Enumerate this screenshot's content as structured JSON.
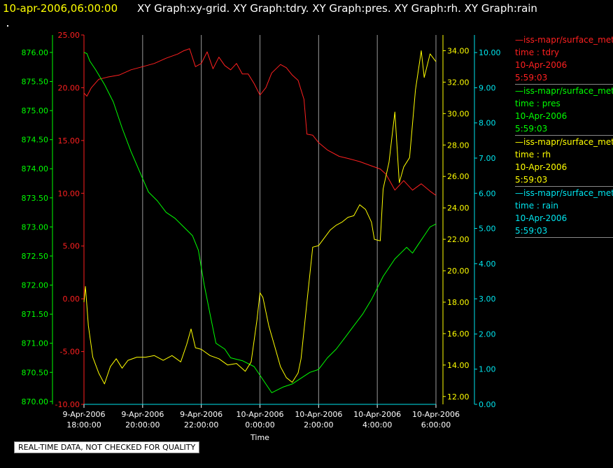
{
  "header": {
    "timestamp": "10-apr-2006,06:00:00",
    "titles": "XY Graph:xy-grid.  XY Graph:tdry.  XY Graph:pres.  XY Graph:rh.  XY Graph:rain"
  },
  "legend": [
    {
      "source": "iss-mapr/surface_met",
      "label": "time : tdry",
      "date": "10-Apr-2006",
      "time": "5:59:03",
      "color": "#ff2020"
    },
    {
      "source": "iss-mapr/surface_met",
      "label": "time : pres",
      "date": "10-Apr-2006",
      "time": "5:59:03",
      "color": "#00ff00"
    },
    {
      "source": "iss-mapr/surface_met",
      "label": "time : rh",
      "date": "10-Apr-2006",
      "time": "5:59:03",
      "color": "#ffff00"
    },
    {
      "source": "iss-mapr/surface_met",
      "label": "time : rain",
      "date": "10-Apr-2006",
      "time": "5:59:03",
      "color": "#00e5ee"
    }
  ],
  "quality_note": "REAL-TIME DATA, NOT CHECKED FOR QUALITY",
  "chart_data": {
    "type": "line",
    "xlabel": "Time",
    "x_ticks": [
      {
        "date": "9-Apr-2006",
        "time": "18:00:00",
        "hours": 18
      },
      {
        "date": "9-Apr-2006",
        "time": "20:00:00",
        "hours": 20
      },
      {
        "date": "9-Apr-2006",
        "time": "22:00:00",
        "hours": 22
      },
      {
        "date": "10-Apr-2006",
        "time": "0:00:00",
        "hours": 24
      },
      {
        "date": "10-Apr-2006",
        "time": "2:00:00",
        "hours": 26
      },
      {
        "date": "10-Apr-2006",
        "time": "4:00:00",
        "hours": 28
      },
      {
        "date": "10-Apr-2006",
        "time": "6:00:00",
        "hours": 30
      }
    ],
    "xlim_hours": [
      18,
      30
    ],
    "grid": "vertical",
    "axes": {
      "pres": {
        "color": "#00ff00",
        "ylim": [
          869.95,
          876.3
        ],
        "ticks": [
          "870.00",
          "870.50",
          "871.00",
          "871.50",
          "872.00",
          "872.50",
          "873.00",
          "873.50",
          "874.00",
          "874.50",
          "875.00",
          "875.50",
          "876.00"
        ]
      },
      "tdry": {
        "color": "#ff2020",
        "ylim": [
          -10,
          25
        ],
        "ticks": [
          "-10.00",
          "-5.00",
          "0.00",
          "5.00",
          "10.00",
          "15.00",
          "20.00",
          "25.00"
        ]
      },
      "rh": {
        "color": "#ffff00",
        "ylim": [
          11.5,
          35.0
        ],
        "ticks": [
          "12.00",
          "14.00",
          "16.00",
          "18.00",
          "20.00",
          "22.00",
          "24.00",
          "26.00",
          "28.00",
          "30.00",
          "32.00",
          "34.00"
        ]
      },
      "rain": {
        "color": "#00e5ee",
        "ylim": [
          0,
          10.5
        ],
        "ticks": [
          "0.00",
          "1.00",
          "2.00",
          "3.00",
          "4.00",
          "5.00",
          "6.00",
          "7.00",
          "8.00",
          "9.00",
          "10.00"
        ]
      }
    },
    "series": [
      {
        "name": "tdry",
        "axis": "tdry",
        "color": "#ff2020",
        "points": [
          [
            18,
            19.5
          ],
          [
            18.1,
            19.2
          ],
          [
            18.25,
            20.0
          ],
          [
            18.5,
            20.8
          ],
          [
            18.8,
            21.0
          ],
          [
            19.2,
            21.2
          ],
          [
            19.6,
            21.7
          ],
          [
            20.0,
            22.0
          ],
          [
            20.4,
            22.3
          ],
          [
            20.8,
            22.8
          ],
          [
            21.2,
            23.2
          ],
          [
            21.4,
            23.5
          ],
          [
            21.6,
            23.7
          ],
          [
            21.8,
            22.0
          ],
          [
            22.0,
            22.3
          ],
          [
            22.2,
            23.4
          ],
          [
            22.4,
            21.8
          ],
          [
            22.6,
            22.9
          ],
          [
            22.8,
            22.1
          ],
          [
            23.0,
            21.7
          ],
          [
            23.2,
            22.3
          ],
          [
            23.4,
            21.3
          ],
          [
            23.6,
            21.3
          ],
          [
            23.8,
            20.4
          ],
          [
            24.0,
            19.3
          ],
          [
            24.2,
            20.0
          ],
          [
            24.4,
            21.4
          ],
          [
            24.7,
            22.2
          ],
          [
            24.9,
            21.9
          ],
          [
            25.1,
            21.2
          ],
          [
            25.3,
            20.7
          ],
          [
            25.5,
            18.9
          ],
          [
            25.6,
            15.6
          ],
          [
            25.8,
            15.5
          ],
          [
            26.0,
            14.8
          ],
          [
            26.3,
            14.1
          ],
          [
            26.7,
            13.5
          ],
          [
            27.0,
            13.3
          ],
          [
            27.4,
            13.0
          ],
          [
            27.8,
            12.6
          ],
          [
            28.1,
            12.3
          ],
          [
            28.3,
            11.8
          ],
          [
            28.6,
            10.3
          ],
          [
            28.9,
            11.2
          ],
          [
            29.2,
            10.3
          ],
          [
            29.5,
            10.9
          ],
          [
            29.8,
            10.2
          ],
          [
            30.0,
            9.8
          ]
        ]
      },
      {
        "name": "pres",
        "axis": "pres",
        "color": "#00ff00",
        "points": [
          [
            18,
            876.0
          ],
          [
            18.1,
            875.98
          ],
          [
            18.2,
            875.85
          ],
          [
            18.4,
            875.7
          ],
          [
            18.7,
            875.45
          ],
          [
            19.0,
            875.15
          ],
          [
            19.3,
            874.7
          ],
          [
            19.6,
            874.3
          ],
          [
            19.9,
            873.95
          ],
          [
            20.2,
            873.6
          ],
          [
            20.5,
            873.45
          ],
          [
            20.8,
            873.25
          ],
          [
            21.1,
            873.15
          ],
          [
            21.4,
            873.0
          ],
          [
            21.7,
            872.85
          ],
          [
            21.9,
            872.6
          ],
          [
            22.1,
            872.0
          ],
          [
            22.3,
            871.5
          ],
          [
            22.5,
            871.0
          ],
          [
            22.8,
            870.9
          ],
          [
            23.0,
            870.75
          ],
          [
            23.4,
            870.7
          ],
          [
            23.8,
            870.6
          ],
          [
            24.0,
            870.45
          ],
          [
            24.2,
            870.3
          ],
          [
            24.4,
            870.15
          ],
          [
            24.6,
            870.2
          ],
          [
            24.8,
            870.25
          ],
          [
            25.1,
            870.3
          ],
          [
            25.4,
            870.4
          ],
          [
            25.7,
            870.5
          ],
          [
            26.0,
            870.55
          ],
          [
            26.3,
            870.75
          ],
          [
            26.6,
            870.9
          ],
          [
            26.9,
            871.1
          ],
          [
            27.2,
            871.3
          ],
          [
            27.5,
            871.5
          ],
          [
            27.8,
            871.75
          ],
          [
            28.0,
            871.95
          ],
          [
            28.2,
            872.15
          ],
          [
            28.4,
            872.3
          ],
          [
            28.6,
            872.45
          ],
          [
            28.8,
            872.55
          ],
          [
            29.0,
            872.65
          ],
          [
            29.2,
            872.55
          ],
          [
            29.4,
            872.7
          ],
          [
            29.6,
            872.85
          ],
          [
            29.8,
            873.0
          ],
          [
            30.0,
            873.05
          ]
        ]
      },
      {
        "name": "rh",
        "axis": "rh",
        "color": "#ffff00",
        "points": [
          [
            18,
            18.0
          ],
          [
            18.05,
            19.0
          ],
          [
            18.15,
            16.5
          ],
          [
            18.3,
            14.5
          ],
          [
            18.5,
            13.5
          ],
          [
            18.7,
            12.8
          ],
          [
            18.9,
            13.9
          ],
          [
            19.1,
            14.4
          ],
          [
            19.3,
            13.8
          ],
          [
            19.5,
            14.3
          ],
          [
            19.8,
            14.5
          ],
          [
            20.1,
            14.5
          ],
          [
            20.4,
            14.6
          ],
          [
            20.7,
            14.3
          ],
          [
            21.0,
            14.6
          ],
          [
            21.3,
            14.2
          ],
          [
            21.5,
            15.3
          ],
          [
            21.65,
            16.3
          ],
          [
            21.8,
            15.1
          ],
          [
            22.0,
            15.0
          ],
          [
            22.3,
            14.6
          ],
          [
            22.6,
            14.4
          ],
          [
            22.9,
            14.0
          ],
          [
            23.2,
            14.1
          ],
          [
            23.5,
            13.6
          ],
          [
            23.7,
            14.2
          ],
          [
            23.9,
            16.9
          ],
          [
            24.0,
            18.6
          ],
          [
            24.1,
            18.3
          ],
          [
            24.3,
            16.5
          ],
          [
            24.5,
            15.2
          ],
          [
            24.7,
            13.9
          ],
          [
            24.9,
            13.2
          ],
          [
            25.1,
            12.9
          ],
          [
            25.3,
            13.5
          ],
          [
            25.4,
            14.4
          ],
          [
            25.6,
            18.0
          ],
          [
            25.8,
            21.5
          ],
          [
            26.0,
            21.6
          ],
          [
            26.2,
            22.1
          ],
          [
            26.4,
            22.6
          ],
          [
            26.6,
            22.9
          ],
          [
            26.8,
            23.1
          ],
          [
            27.0,
            23.4
          ],
          [
            27.2,
            23.5
          ],
          [
            27.4,
            24.2
          ],
          [
            27.6,
            23.9
          ],
          [
            27.8,
            23.1
          ],
          [
            27.9,
            22.0
          ],
          [
            28.1,
            21.9
          ],
          [
            28.2,
            25.2
          ],
          [
            28.4,
            26.9
          ],
          [
            28.6,
            30.1
          ],
          [
            28.75,
            25.6
          ],
          [
            28.9,
            26.6
          ],
          [
            29.1,
            27.2
          ],
          [
            29.3,
            31.5
          ],
          [
            29.5,
            34.0
          ],
          [
            29.6,
            32.3
          ],
          [
            29.8,
            33.8
          ],
          [
            30.0,
            33.3
          ]
        ]
      },
      {
        "name": "rain",
        "axis": "rain",
        "color": "#00e5ee",
        "points": [
          [
            18,
            0.0
          ],
          [
            30,
            0.0
          ]
        ]
      }
    ]
  }
}
